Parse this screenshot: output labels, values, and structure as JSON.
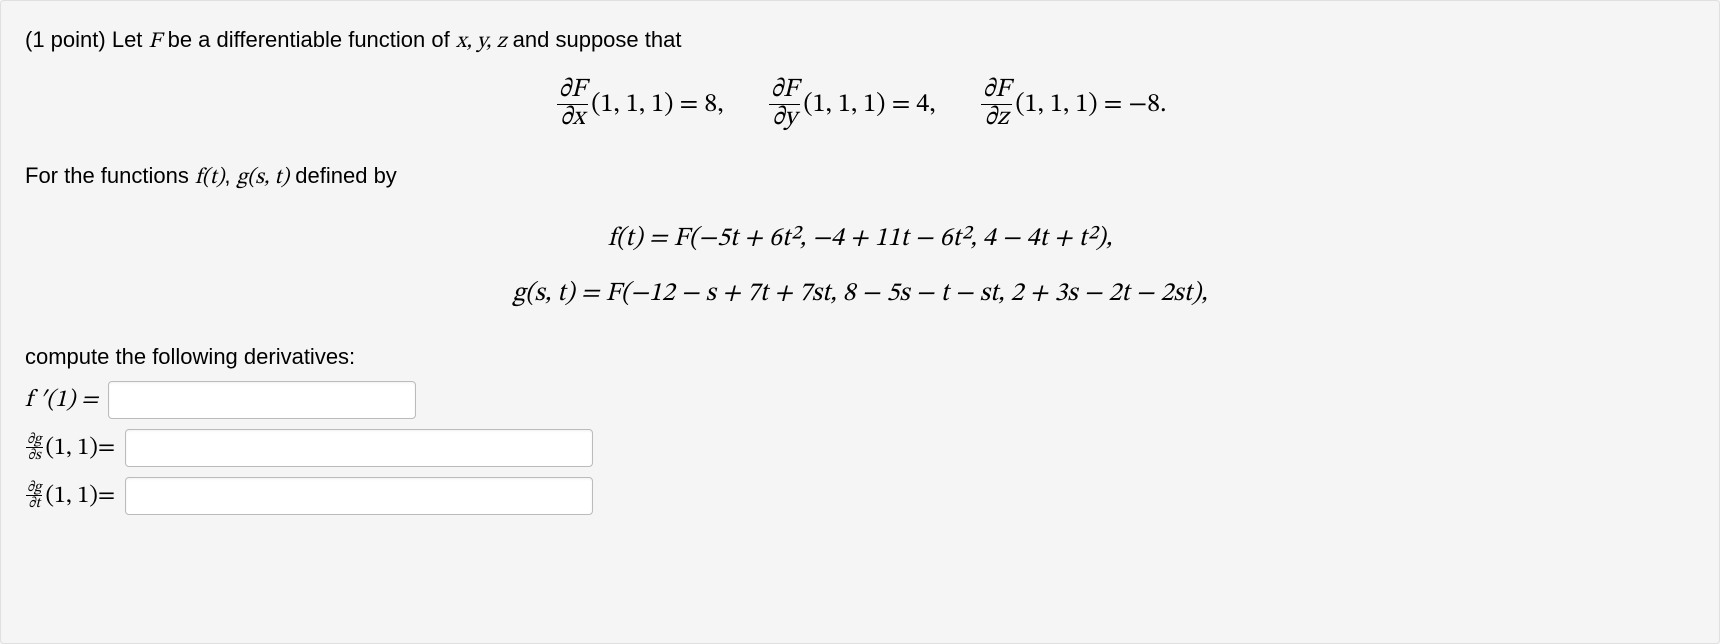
{
  "points_prefix": "(1 point) ",
  "intro_before_F": "Let ",
  "F": "F",
  "intro_mid": " be a differentiable function of ",
  "xyz": "x, y, z",
  "intro_suffix": " and suppose that",
  "partials": {
    "dF": "∂F",
    "dx": "∂x",
    "dy": "∂y",
    "dz": "∂z",
    "pt": "(1, 1, 1)",
    "eq": " = ",
    "valx": "8,",
    "valy": "4,",
    "valz": "−8."
  },
  "for_the_functions_pre": "For the functions ",
  "fn_ft": "f(t)",
  "comma": ", ",
  "fn_gst": "g(s, t)",
  "for_the_functions_post": " defined by",
  "f_def": "f(t) = F(−5t + 6t², −4 + 11t − 6t², 4 − 4t + t²),",
  "g_def": "g(s, t) = F(−12 − s + 7t + 7st, 8 − 5s − t − st, 2 + 3s − 2t − 2st),",
  "compute_line": "compute the following derivatives:",
  "ans1_label": "f ′(1) = ",
  "ans2": {
    "dg": "∂g",
    "ds": "∂s",
    "pt": "(1, 1)",
    "eq": " = "
  },
  "ans3": {
    "dg": "∂g",
    "dt": "∂t",
    "pt": "(1, 1)",
    "eq": " = "
  }
}
